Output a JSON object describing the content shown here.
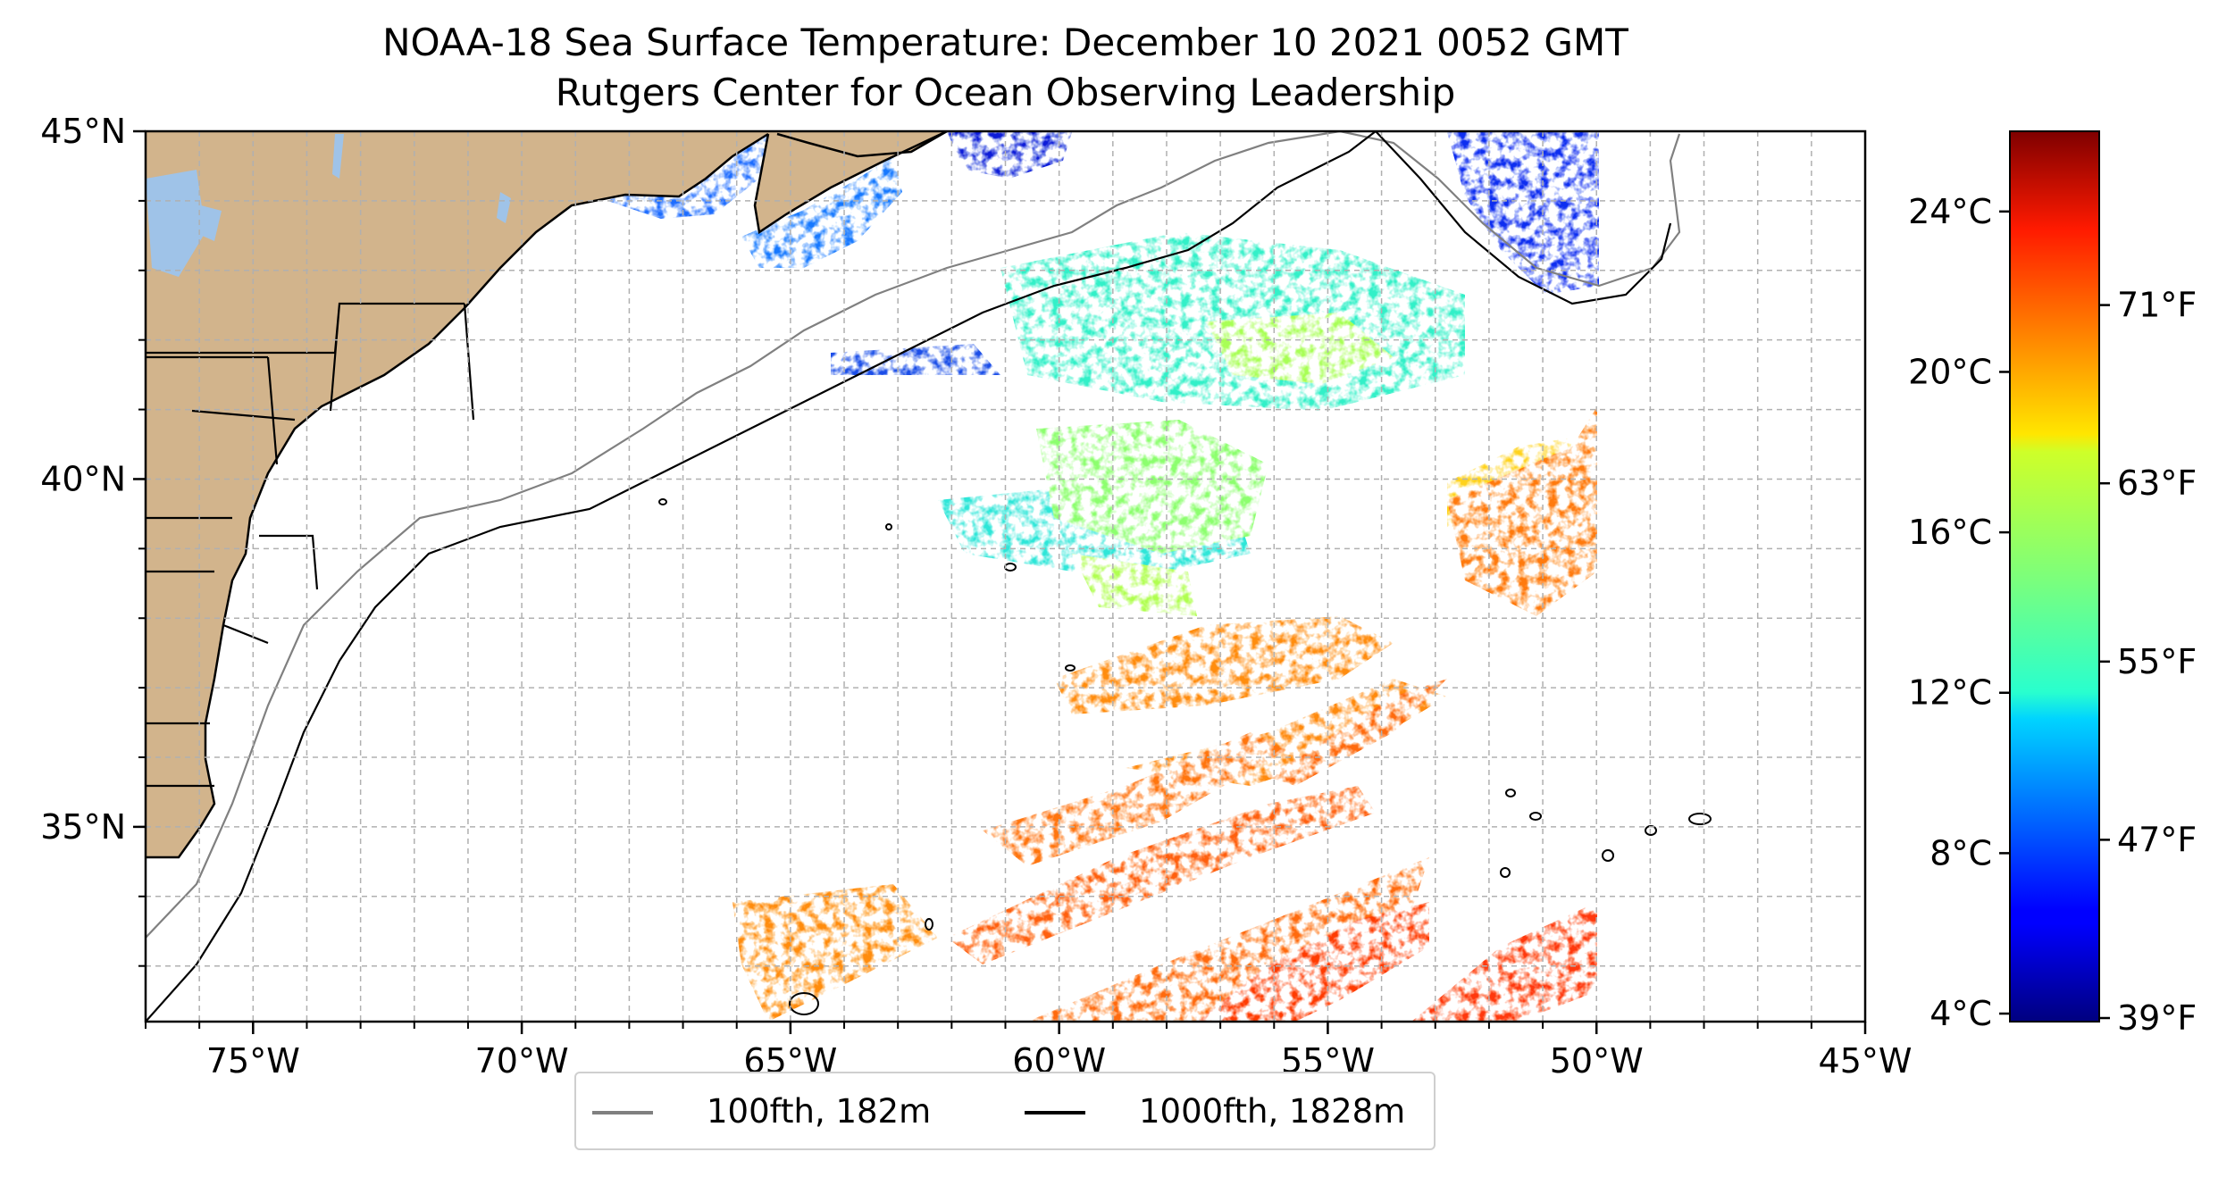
{
  "title": "NOAA-18 Sea Surface Temperature: December 10 2021 0052 GMT",
  "subtitle": "Rutgers Center for Ocean Observing Leadership",
  "map": {
    "lon_range": [
      -77,
      -45
    ],
    "lat_range": [
      32.2,
      45
    ],
    "lon_ticks": [
      {
        "value": -75,
        "label": "75°W"
      },
      {
        "value": -70,
        "label": "70°W"
      },
      {
        "value": -65,
        "label": "65°W"
      },
      {
        "value": -60,
        "label": "60°W"
      },
      {
        "value": -55,
        "label": "55°W"
      },
      {
        "value": -50,
        "label": "50°W"
      },
      {
        "value": -45,
        "label": "45°W"
      }
    ],
    "lat_ticks": [
      {
        "value": 45,
        "label": "45°N"
      },
      {
        "value": 40,
        "label": "40°N"
      },
      {
        "value": 35,
        "label": "35°N"
      }
    ],
    "gridlines": "dashed, every 1°",
    "land_color": "#d2b48c",
    "lake_color": "#9fc3e8",
    "ocean_color": "#ffffff"
  },
  "colorbar": {
    "colormap": "jet",
    "celsius_range": [
      3.8,
      26
    ],
    "celsius_ticks": [
      {
        "value": 4,
        "label": "4°C"
      },
      {
        "value": 8,
        "label": "8°C"
      },
      {
        "value": 12,
        "label": "12°C"
      },
      {
        "value": 16,
        "label": "16°C"
      },
      {
        "value": 20,
        "label": "20°C"
      },
      {
        "value": 24,
        "label": "24°C"
      }
    ],
    "fahrenheit_ticks": [
      {
        "value": 39,
        "label": "39°F"
      },
      {
        "value": 47,
        "label": "47°F"
      },
      {
        "value": 55,
        "label": "55°F"
      },
      {
        "value": 63,
        "label": "63°F"
      },
      {
        "value": 71,
        "label": "71°F"
      }
    ]
  },
  "legend": {
    "items": [
      {
        "label": "100fth, 182m",
        "color": "#808080"
      },
      {
        "label": "1000fth, 1828m",
        "color": "#000000"
      }
    ]
  }
}
